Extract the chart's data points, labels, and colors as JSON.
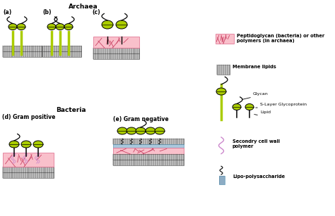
{
  "bg_color": "#ffffff",
  "pink_color": "#F9C0CB",
  "green_color": "#AACC00",
  "black": "#000000",
  "gray_stripe": "#c8c8c8",
  "blue_lps": "#aac8dd",
  "purple_scw": "#cc88cc",
  "legend_texts": [
    "Peptidoglycan (bacteria) or other\npolymers (in archaea)",
    "Membrane lipids",
    "Glycan",
    "S-Layer Glycoprotein",
    "Lipid",
    "Secondry cell wall\npolymer",
    "Lipo-polysaccharide"
  ],
  "labels": {
    "archaea": "Archaea",
    "bacteria": "Bacteria",
    "a": "(a)",
    "b": "(b)",
    "c": "(c)",
    "d": "(d) Gram positive",
    "e": "(e) Gram negative"
  }
}
